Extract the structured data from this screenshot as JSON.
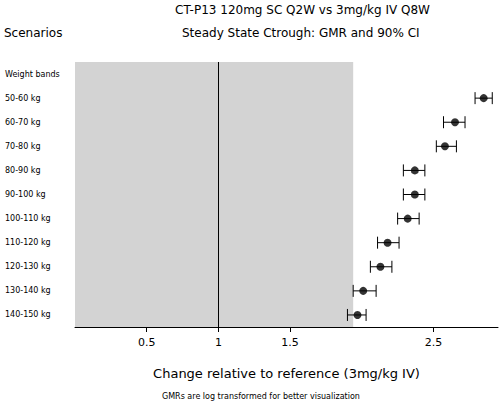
{
  "chart_data": {
    "type": "scatter",
    "orientation": "horizontal",
    "title": "CT-P13 120mg SC Q2W vs 3mg/kg IV Q8W",
    "subtitle": "Steady State Ctrough: GMR and 90% CI",
    "row_header": "Scenarios",
    "xlabel": "Change relative to reference (3mg/kg IV)",
    "note": "GMRs are log transformed for better visualization",
    "categories": [
      "Weight bands",
      "50-60 kg",
      "60-70 kg",
      "70-80 kg",
      "80-90 kg",
      "90-100 kg",
      "100-110 kg",
      "110-120 kg",
      "120-130 kg",
      "130-140 kg",
      "140-150 kg"
    ],
    "values": [
      null,
      2.85,
      2.65,
      2.58,
      2.37,
      2.37,
      2.32,
      2.18,
      2.13,
      2.01,
      1.97
    ],
    "ci_lower": [
      null,
      2.79,
      2.57,
      2.52,
      2.29,
      2.29,
      2.25,
      2.11,
      2.06,
      1.94,
      1.9
    ],
    "ci_upper": [
      null,
      2.91,
      2.72,
      2.66,
      2.44,
      2.44,
      2.4,
      2.26,
      2.21,
      2.1,
      2.03
    ],
    "color": "#000000",
    "marker": "circle",
    "reference_line": 1,
    "shaded_region": [
      0,
      1.94
    ],
    "xlim": [
      0,
      2.95
    ],
    "xticks": [
      0.5,
      1,
      1.5,
      2.5
    ],
    "grid": false
  }
}
